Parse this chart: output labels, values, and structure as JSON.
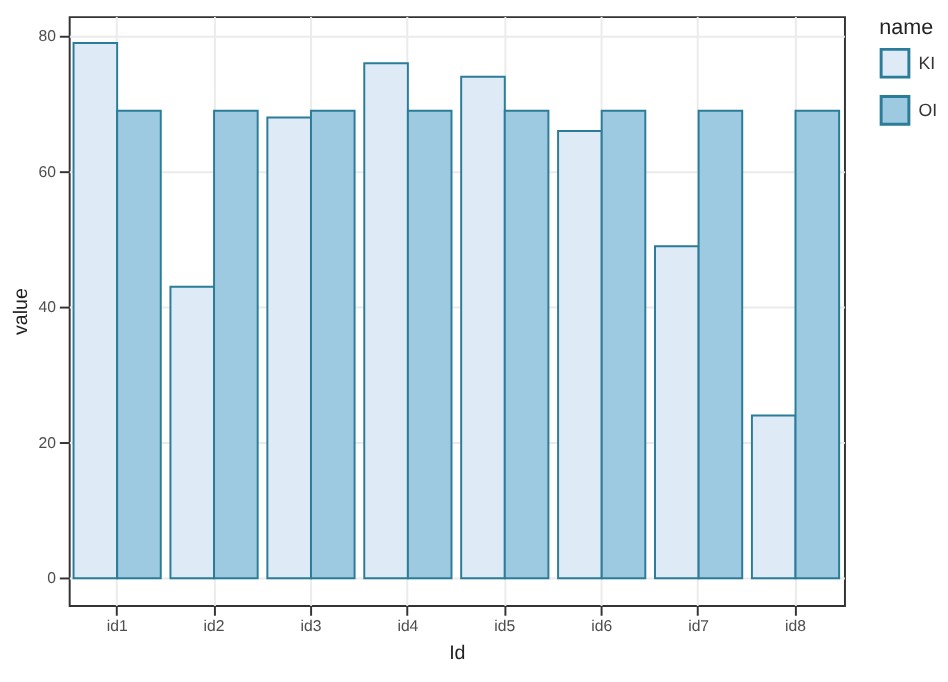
{
  "chart_data": {
    "type": "bar",
    "xlabel": "Id",
    "ylabel": "value",
    "legend_title": "name",
    "categories": [
      "id1",
      "id2",
      "id3",
      "id4",
      "id5",
      "id6",
      "id7",
      "id8"
    ],
    "series": [
      {
        "name": "KI",
        "color": "#deebf7",
        "values": [
          79,
          43,
          68,
          76,
          74,
          66,
          49,
          24
        ]
      },
      {
        "name": "OI",
        "color": "#9ecae1",
        "values": [
          69,
          69,
          69,
          69,
          69,
          69,
          69,
          69
        ]
      }
    ],
    "ylim": [
      -3.95,
      82.95
    ],
    "yticks": [
      0,
      20,
      40,
      60,
      80
    ],
    "grid": true,
    "legend": "right"
  }
}
